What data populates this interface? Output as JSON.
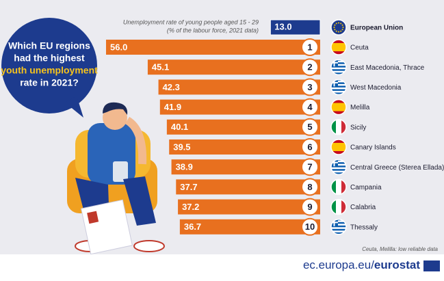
{
  "chart_data": {
    "type": "bar",
    "title_parts": [
      "Which EU regions",
      "had the highest",
      "youth unemployment",
      "rate in 2021?"
    ],
    "subtitle": [
      "Unemployment rate of young people aged 15 - 29",
      "(% of the labour force, 2021 data)"
    ],
    "categories": [
      "Ceuta",
      "East Macedonia, Thrace",
      "West Macedonia",
      "Melilla",
      "Sicily",
      "Canary Islands",
      "Central Greece (Sterea Ellada)",
      "Campania",
      "Calabria",
      "Thessaly"
    ],
    "values": [
      56.0,
      45.1,
      42.3,
      41.9,
      40.1,
      39.5,
      38.9,
      37.7,
      37.2,
      36.7
    ],
    "value_labels": [
      "56.0",
      "45.1",
      "42.3",
      "41.9",
      "40.1",
      "39.5",
      "38.9",
      "37.7",
      "37.2",
      "36.7"
    ],
    "ranks": [
      1,
      2,
      3,
      4,
      5,
      6,
      7,
      8,
      9,
      10
    ],
    "color": "#e8701f",
    "reference": {
      "name": "European Union",
      "value": 13.0,
      "value_label": "13.0",
      "color": "#1d3b8e"
    },
    "note": "Ceuta, Melilla: low reliable data",
    "footer": [
      "ec.europa.eu/",
      "eurostat"
    ]
  }
}
